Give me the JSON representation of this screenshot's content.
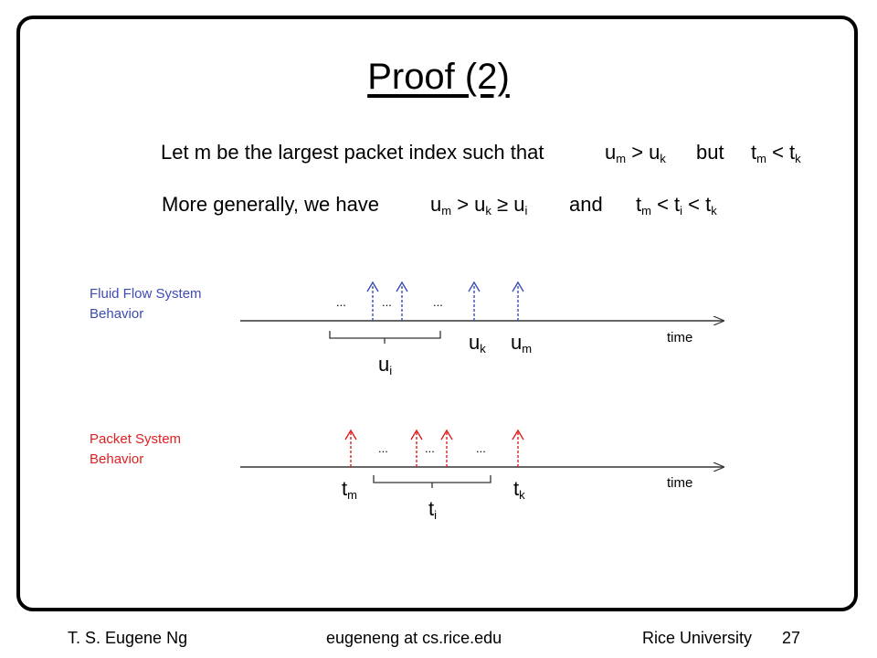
{
  "title": "Proof (2)",
  "statement1": {
    "lead": "Let m be the largest packet index such that",
    "expr_a": {
      "base": "u",
      "sub": "m",
      "rest": " > u",
      "sub2": "k"
    },
    "conj": "but",
    "expr_b": {
      "base": "t",
      "sub": "m",
      "rest": " < t",
      "sub2": "k"
    }
  },
  "statement2": {
    "lead": "More generally, we have",
    "expr_a": {
      "base": "u",
      "sub": "m",
      "mid": " > u",
      "sub2": "k",
      "rest": " ≥ u",
      "sub3": "i"
    },
    "conj": "and",
    "expr_b": {
      "base": "t",
      "sub": "m",
      "mid": " < t",
      "sub2": "i",
      "rest": " < t",
      "sub3": "k"
    }
  },
  "fluid": {
    "label_line1": "Fluid Flow System",
    "label_line2": "Behavior",
    "axis_label": "time",
    "ellipses": [
      "...",
      "...",
      "..."
    ],
    "ui": {
      "base": "u",
      "sub": "i"
    },
    "uk": {
      "base": "u",
      "sub": "k"
    },
    "um": {
      "base": "u",
      "sub": "m"
    }
  },
  "packet": {
    "label_line1": "Packet System",
    "label_line2": "Behavior",
    "axis_label": "time",
    "ellipses": [
      "...",
      "...",
      "..."
    ],
    "tm": {
      "base": "t",
      "sub": "m"
    },
    "ti": {
      "base": "t",
      "sub": "i"
    },
    "tk": {
      "base": "t",
      "sub": "k"
    }
  },
  "colors": {
    "fluid": "#3d4bb5",
    "packet": "#e02020",
    "axis": "#333333"
  },
  "footer": {
    "author": "T. S. Eugene Ng",
    "email": "eugeneng at cs.rice.edu",
    "institution": "Rice University",
    "page": "27"
  }
}
